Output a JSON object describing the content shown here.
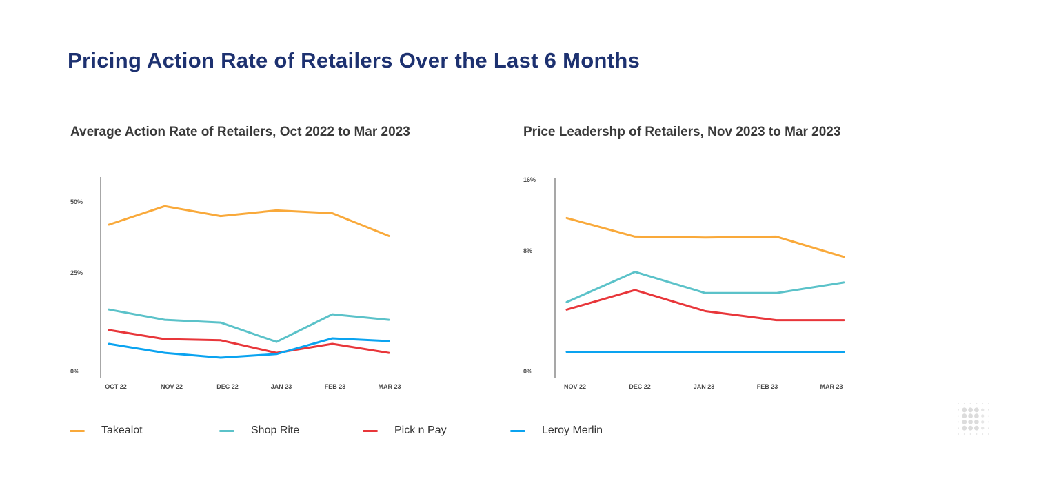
{
  "page_title": "Pricing Action Rate of Retailers Over the Last 6 Months",
  "legend": [
    {
      "name": "Takealot",
      "color": "#f9a93a"
    },
    {
      "name": "Shop Rite",
      "color": "#5bc2c9"
    },
    {
      "name": "Pick n Pay",
      "color": "#e8363a"
    },
    {
      "name": "Leroy Merlin",
      "color": "#0aa3f0"
    }
  ],
  "chart_data": [
    {
      "type": "line",
      "title": "Average Action Rate of Retailers, Oct 2022 to Mar 2023",
      "categories": [
        "OCT 22",
        "NOV 22",
        "DEC 22",
        "JAN 23",
        "FEB 23",
        "MAR 23"
      ],
      "yticks": [
        "0%",
        "25%",
        "50%"
      ],
      "ytick_values": [
        0,
        25,
        50
      ],
      "ylim": [
        0,
        50
      ],
      "grid": false,
      "legend_position": "bottom",
      "series": [
        {
          "name": "Takealot",
          "color": "#f9a93a",
          "values": [
            42,
            48.5,
            45,
            47,
            46,
            38
          ]
        },
        {
          "name": "Shop Rite",
          "color": "#5bc2c9",
          "values": [
            15.7,
            13.1,
            12.4,
            7.5,
            14.5,
            13.1
          ]
        },
        {
          "name": "Pick n Pay",
          "color": "#e8363a",
          "values": [
            10.5,
            8.2,
            7.9,
            4.7,
            7.0,
            4.7
          ]
        },
        {
          "name": "Leroy Merlin",
          "color": "#0aa3f0",
          "values": [
            7.0,
            4.7,
            3.5,
            4.4,
            8.4,
            7.7
          ]
        }
      ]
    },
    {
      "type": "line",
      "title": "Price Leadershp of Retailers, Nov 2023 to Mar 2023",
      "categories": [
        "NOV 22",
        "DEC 22",
        "JAN 23",
        "FEB 23",
        "MAR 23"
      ],
      "yticks": [
        "0%",
        "8%",
        "16%"
      ],
      "ytick_values": [
        0,
        8,
        16
      ],
      "ylim": [
        0,
        16
      ],
      "grid": false,
      "legend_position": "bottom",
      "series": [
        {
          "name": "Takealot",
          "color": "#f9a93a",
          "values": [
            11.7,
            9.6,
            9.5,
            9.6,
            7.6
          ]
        },
        {
          "name": "Shop Rite",
          "color": "#5bc2c9",
          "values": [
            4.6,
            6.6,
            5.2,
            5.2,
            5.9
          ]
        },
        {
          "name": "Pick n Pay",
          "color": "#e8363a",
          "values": [
            4.1,
            5.4,
            4.0,
            3.4,
            3.4
          ]
        },
        {
          "name": "Leroy Merlin",
          "color": "#0aa3f0",
          "values": [
            1.3,
            1.3,
            1.3,
            1.3,
            1.3
          ]
        }
      ]
    }
  ]
}
